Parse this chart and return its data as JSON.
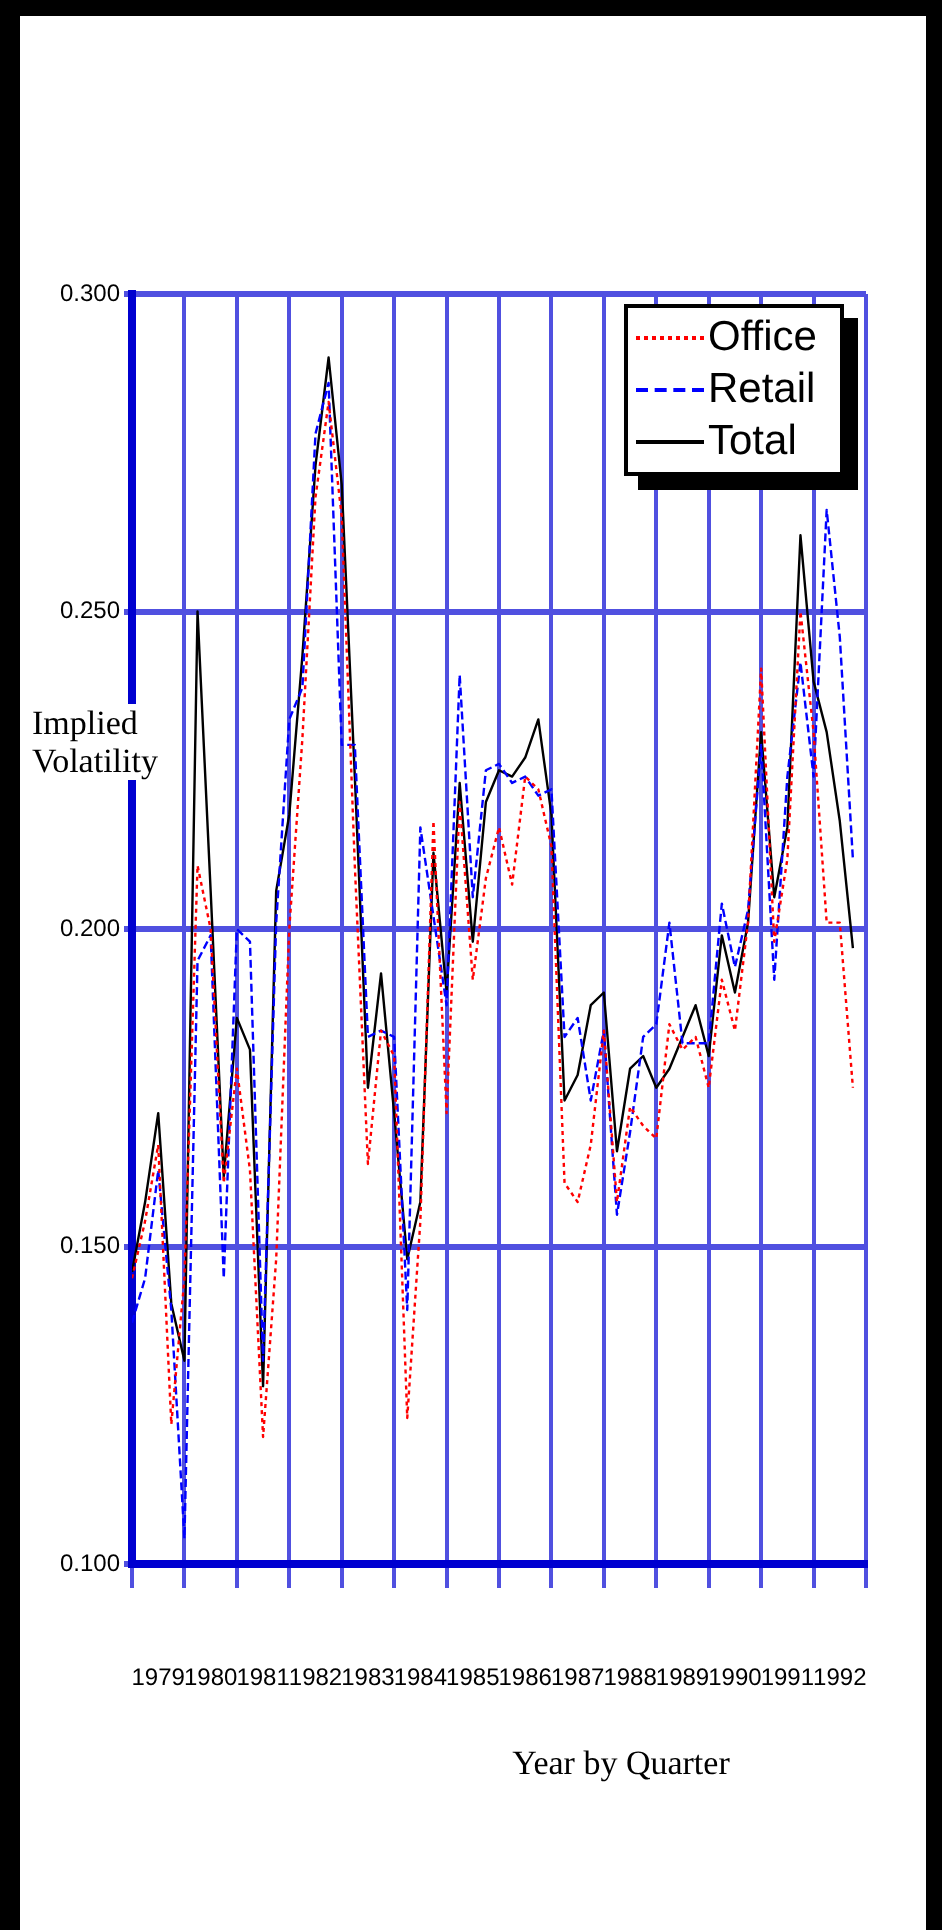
{
  "chart_data": {
    "type": "line",
    "xlabel": "Year by Quarter",
    "ylabel": "Implied Volatility",
    "x": [
      1979,
      1979.25,
      1979.5,
      1979.75,
      1980,
      1980.25,
      1980.5,
      1980.75,
      1981,
      1981.25,
      1981.5,
      1981.75,
      1982,
      1982.25,
      1982.5,
      1982.75,
      1983,
      1983.25,
      1983.5,
      1983.75,
      1984,
      1984.25,
      1984.5,
      1984.75,
      1985,
      1985.25,
      1985.5,
      1985.75,
      1986,
      1986.25,
      1986.5,
      1986.75,
      1987,
      1987.25,
      1987.5,
      1987.75,
      1988,
      1988.25,
      1988.5,
      1988.75,
      1989,
      1989.25,
      1989.5,
      1989.75,
      1990,
      1990.25,
      1990.5,
      1990.75,
      1991,
      1991.25,
      1991.5,
      1991.75,
      1992,
      1992.25,
      1992.5,
      1992.75
    ],
    "series": [
      {
        "name": "Office",
        "color": "#ff0000",
        "line_style": "dotted",
        "values": [
          0.145,
          0.154,
          0.166,
          0.122,
          0.145,
          0.21,
          0.2,
          0.16,
          0.178,
          0.162,
          0.12,
          0.148,
          0.2,
          0.23,
          0.268,
          0.283,
          0.265,
          0.21,
          0.163,
          0.184,
          0.18,
          0.123,
          0.154,
          0.217,
          0.171,
          0.22,
          0.192,
          0.208,
          0.216,
          0.207,
          0.224,
          0.222,
          0.213,
          0.16,
          0.157,
          0.166,
          0.184,
          0.157,
          0.172,
          0.169,
          0.167,
          0.185,
          0.181,
          0.183,
          0.175,
          0.192,
          0.184,
          0.201,
          0.241,
          0.198,
          0.211,
          0.25,
          0.231,
          0.201,
          0.201,
          0.175
        ]
      },
      {
        "name": "Retail",
        "color": "#0000ff",
        "line_style": "dashed",
        "values": [
          0.138,
          0.145,
          0.162,
          0.14,
          0.104,
          0.195,
          0.199,
          0.145,
          0.2,
          0.198,
          0.132,
          0.201,
          0.233,
          0.238,
          0.278,
          0.286,
          0.229,
          0.229,
          0.183,
          0.184,
          0.183,
          0.14,
          0.216,
          0.202,
          0.188,
          0.24,
          0.205,
          0.225,
          0.226,
          0.223,
          0.224,
          0.221,
          0.222,
          0.183,
          0.186,
          0.173,
          0.184,
          0.155,
          0.168,
          0.183,
          0.185,
          0.201,
          0.182,
          0.182,
          0.182,
          0.204,
          0.194,
          0.203,
          0.229,
          0.192,
          0.224,
          0.242,
          0.224,
          0.266,
          0.246,
          0.211
        ]
      },
      {
        "name": "Total",
        "color": "#000000",
        "line_style": "solid",
        "values": [
          0.146,
          0.157,
          0.171,
          0.141,
          0.132,
          0.25,
          0.206,
          0.161,
          0.186,
          0.181,
          0.128,
          0.206,
          0.218,
          0.243,
          0.273,
          0.29,
          0.27,
          0.224,
          0.175,
          0.193,
          0.171,
          0.148,
          0.157,
          0.212,
          0.19,
          0.223,
          0.198,
          0.22,
          0.225,
          0.224,
          0.227,
          0.233,
          0.218,
          0.173,
          0.177,
          0.188,
          0.19,
          0.165,
          0.178,
          0.18,
          0.175,
          0.178,
          0.183,
          0.188,
          0.18,
          0.199,
          0.19,
          0.201,
          0.231,
          0.205,
          0.216,
          0.262,
          0.239,
          0.231,
          0.217,
          0.197
        ]
      }
    ],
    "xlim": [
      1979,
      1993
    ],
    "xticks": [
      {
        "value": 1979,
        "label": null
      },
      {
        "value": 1979.5,
        "label": "1979"
      },
      {
        "value": 1980,
        "label": null
      },
      {
        "value": 1980.5,
        "label": "1980"
      },
      {
        "value": 1981,
        "label": null
      },
      {
        "value": 1981.5,
        "label": "1981"
      },
      {
        "value": 1982,
        "label": null
      },
      {
        "value": 1982.5,
        "label": "1982"
      },
      {
        "value": 1983,
        "label": null
      },
      {
        "value": 1983.5,
        "label": "1983"
      },
      {
        "value": 1984,
        "label": null
      },
      {
        "value": 1984.5,
        "label": "1984"
      },
      {
        "value": 1985,
        "label": null
      },
      {
        "value": 1985.5,
        "label": "1985"
      },
      {
        "value": 1986,
        "label": null
      },
      {
        "value": 1986.5,
        "label": "1986"
      },
      {
        "value": 1987,
        "label": null
      },
      {
        "value": 1987.5,
        "label": "1987"
      },
      {
        "value": 1988,
        "label": null
      },
      {
        "value": 1988.5,
        "label": "1988"
      },
      {
        "value": 1989,
        "label": null
      },
      {
        "value": 1989.5,
        "label": "1989"
      },
      {
        "value": 1990,
        "label": null
      },
      {
        "value": 1990.5,
        "label": "1990"
      },
      {
        "value": 1991,
        "label": null
      },
      {
        "value": 1991.5,
        "label": "1991"
      },
      {
        "value": 1992,
        "label": null
      },
      {
        "value": 1992.5,
        "label": "1992"
      },
      {
        "value": 1993,
        "label": null
      }
    ],
    "ylim": [
      0.1,
      0.3
    ],
    "yticks": [
      {
        "value": 0.1,
        "label": "0.100"
      },
      {
        "value": 0.15,
        "label": "0.150"
      },
      {
        "value": 0.2,
        "label": "0.200"
      },
      {
        "value": 0.25,
        "label": "0.250"
      },
      {
        "value": 0.3,
        "label": "0.300"
      }
    ],
    "grid": true,
    "legend": "top right",
    "marker": "none"
  }
}
